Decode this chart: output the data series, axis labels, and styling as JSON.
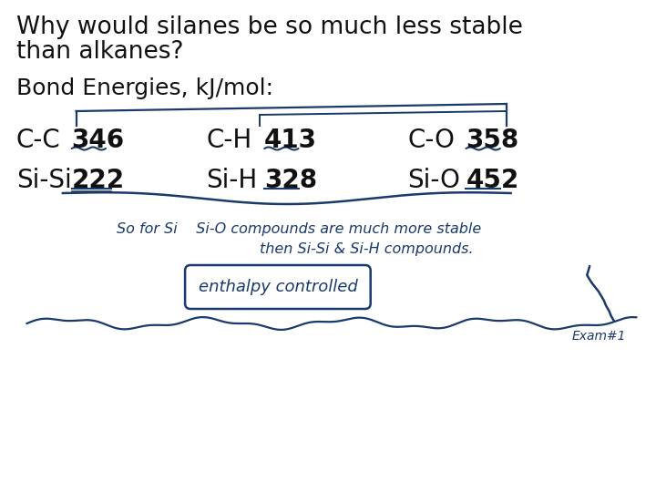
{
  "title_line1": "Why would silanes be so much less stable",
  "title_line2": "than alkanes?",
  "subtitle": "Bond Energies, kJ/mol:",
  "background_color": "#ffffff",
  "text_color": "#111111",
  "handwriting_color": "#1a3a6b",
  "col_labels": [
    "C-C",
    "C-H",
    "C-O",
    "Si-Si",
    "Si-H",
    "Si-O"
  ],
  "col_values": [
    "346",
    "413",
    "358",
    "222",
    "328",
    "452"
  ],
  "handwriting_line1": "So for Si    Si-O compounds are much more stable",
  "handwriting_line2": "then Si-Si & Si-H compounds.",
  "handwriting_box": "enthalpy controlled",
  "exam_label": "Exam#1",
  "title_fontsize": 19,
  "subtitle_fontsize": 18,
  "label_fontsize": 20,
  "value_fontsize": 20,
  "hw_fontsize": 11.5
}
